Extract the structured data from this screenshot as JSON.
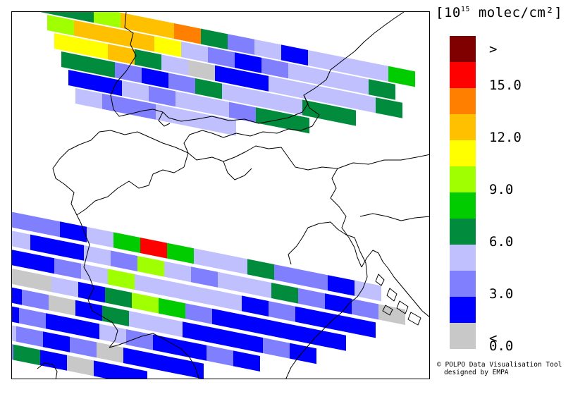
{
  "legend": {
    "units_prefix": "[10",
    "units_exponent": "15",
    "units_suffix": " molec/cm²]",
    "bins": [
      {
        "color": "#800000"
      },
      {
        "color": "#ff0000"
      },
      {
        "color": "#ff8000"
      },
      {
        "color": "#ffc000"
      },
      {
        "color": "#ffff00"
      },
      {
        "color": "#a0ff00"
      },
      {
        "color": "#00cc00"
      },
      {
        "color": "#008c3c"
      },
      {
        "color": "#c0c0ff"
      },
      {
        "color": "#8080ff"
      },
      {
        "color": "#0000ff"
      },
      {
        "color": "#c8c8c8"
      }
    ],
    "labels": [
      ">",
      "15.0",
      "12.0",
      "9.0",
      "6.0",
      "3.0",
      "0.0",
      "<"
    ]
  },
  "credit": {
    "line1": "© POLPO Data Visualisation Tool",
    "line2": "designed by EMPA"
  },
  "map": {
    "top_swaths": [
      [
        "#008c3c",
        "#008c3c",
        "#a0ff00",
        "#ffc000",
        "#ffc000",
        "#ff8000",
        "#008c3c",
        "#8080ff",
        "#c0c0ff",
        "#0000ff",
        "#c0c0ff",
        "#c0c0ff",
        "#c0c0ff",
        "#00cc00"
      ],
      [
        "#a0ff00",
        "#ffc000",
        "#ffc000",
        "#ffc000",
        "#ffff00",
        "#c0c0ff",
        "#8080ff",
        "#0000ff",
        "#8080ff",
        "#c0c0ff",
        "#c0c0ff",
        "#c0c0ff",
        "#008c3c"
      ],
      [
        "#ffff00",
        "#ffff00",
        "#ffc000",
        "#008c3c",
        "#c0c0ff",
        "#c8c8c8",
        "#0000ff",
        "#0000ff",
        "#c0c0ff",
        "#c0c0ff",
        "#c0c0ff",
        "#c0c0ff",
        "#008c3c"
      ],
      [
        "#008c3c",
        "#008c3c",
        "#8080ff",
        "#0000ff",
        "#8080ff",
        "#008c3c",
        "#c0c0ff",
        "#c0c0ff",
        "#c0c0ff",
        "#008c3c",
        "#008c3c"
      ],
      [
        "#0000ff",
        "#0000ff",
        "#c0c0ff",
        "#8080ff",
        "#c0c0ff",
        "#c0c0ff",
        "#8080ff",
        "#008c3c",
        "#008c3c"
      ],
      [
        "#c0c0ff",
        "#8080ff",
        "#8080ff",
        "#c0c0ff",
        "#c0c0ff",
        "#c0c0ff"
      ]
    ],
    "bottom_swaths": [
      [
        "#8080ff",
        "#8080ff",
        "#0000ff",
        "#c0c0ff",
        "#00cc00",
        "#ff0000",
        "#00cc00",
        "#c0c0ff",
        "#c0c0ff",
        "#008c3c",
        "#8080ff",
        "#8080ff",
        "#0000ff",
        "#c0c0ff"
      ],
      [
        "#c0c0ff",
        "#0000ff",
        "#0000ff",
        "#c0c0ff",
        "#8080ff",
        "#a0ff00",
        "#c0c0ff",
        "#8080ff",
        "#c0c0ff",
        "#c0c0ff",
        "#008c3c",
        "#8080ff",
        "#0000ff",
        "#8080ff",
        "#c8c8c8"
      ],
      [
        "#0000ff",
        "#0000ff",
        "#8080ff",
        "#c0c0ff",
        "#a0ff00",
        "#c0c0ff",
        "#c0c0ff",
        "#c0c0ff",
        "#c0c0ff",
        "#0000ff",
        "#8080ff",
        "#0000ff",
        "#0000ff",
        "#0000ff"
      ],
      [
        "#c8c8c8",
        "#c8c8c8",
        "#c0c0ff",
        "#0000ff",
        "#008c3c",
        "#a0ff00",
        "#00cc00",
        "#8080ff",
        "#0000ff",
        "#0000ff",
        "#0000ff",
        "#0000ff",
        "#0000ff"
      ],
      [
        "#0000ff",
        "#8080ff",
        "#c8c8c8",
        "#0000ff",
        "#008c3c",
        "#c0c0ff",
        "#c0c0ff",
        "#0000ff",
        "#0000ff",
        "#0000ff",
        "#8080ff",
        "#0000ff"
      ],
      [
        "#0000ff",
        "#8080ff",
        "#0000ff",
        "#0000ff",
        "#c0c0ff",
        "#8080ff",
        "#0000ff",
        "#0000ff",
        "#8080ff",
        "#0000ff"
      ],
      [
        "#c0c0ff",
        "#8080ff",
        "#0000ff",
        "#8080ff",
        "#c8c8c8",
        "#0000ff",
        "#0000ff",
        "#0000ff"
      ],
      [
        "#8080ff",
        "#008c3c",
        "#0000ff",
        "#c8c8c8",
        "#0000ff",
        "#0000ff"
      ]
    ]
  }
}
